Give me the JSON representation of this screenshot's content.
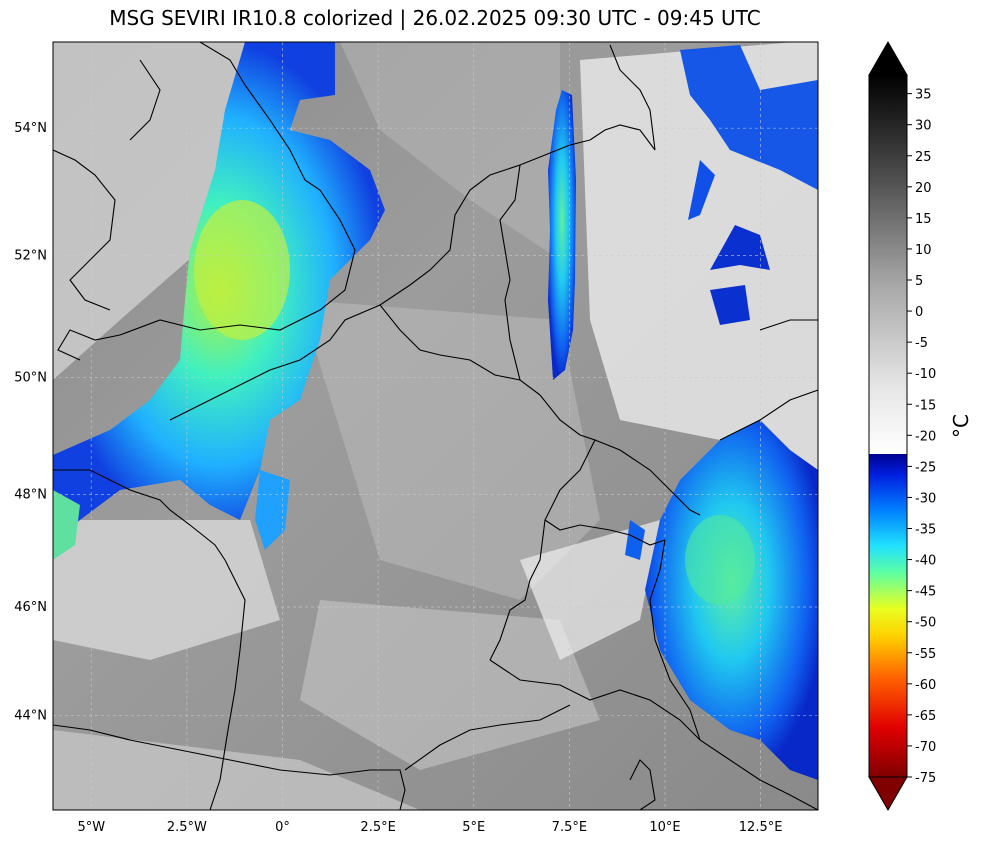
{
  "title": "MSG SEVIRI IR10.8 colorized | 26.02.2025 09:30 UTC - 09:45 UTC",
  "map": {
    "lon_range": [
      -6.0,
      14.0
    ],
    "lat_range": [
      42.2,
      55.3
    ],
    "lon_ticks": [
      {
        "value": -5.0,
        "label": "5°W"
      },
      {
        "value": -2.5,
        "label": "2.5°W"
      },
      {
        "value": 0.0,
        "label": "0°"
      },
      {
        "value": 2.5,
        "label": "2.5°E"
      },
      {
        "value": 5.0,
        "label": "5°E"
      },
      {
        "value": 7.5,
        "label": "7.5°E"
      },
      {
        "value": 10.0,
        "label": "10°E"
      },
      {
        "value": 12.5,
        "label": "12.5°E"
      }
    ],
    "lat_ticks": [
      {
        "value": 44,
        "label": "44°N"
      },
      {
        "value": 46,
        "label": "46°N"
      },
      {
        "value": 48,
        "label": "48°N"
      },
      {
        "value": 50,
        "label": "50°N"
      },
      {
        "value": 52,
        "label": "52°N"
      },
      {
        "value": 54,
        "label": "54°N"
      }
    ],
    "gridlines": true
  },
  "colorbar": {
    "label": "°C",
    "range": [
      -75,
      38
    ],
    "extend": "both",
    "ticks": [
      "35",
      "30",
      "25",
      "20",
      "15",
      "10",
      "5",
      "0",
      "-5",
      "-10",
      "-15",
      "-20",
      "-25",
      "-30",
      "-35",
      "-40",
      "-45",
      "-50",
      "-55",
      "-60",
      "-65",
      "-70",
      "-75"
    ]
  }
}
